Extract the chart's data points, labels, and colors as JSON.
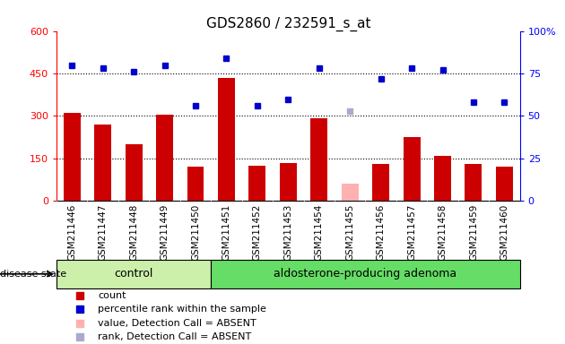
{
  "title": "GDS2860 / 232591_s_at",
  "samples": [
    "GSM211446",
    "GSM211447",
    "GSM211448",
    "GSM211449",
    "GSM211450",
    "GSM211451",
    "GSM211452",
    "GSM211453",
    "GSM211454",
    "GSM211455",
    "GSM211456",
    "GSM211457",
    "GSM211458",
    "GSM211459",
    "GSM211460"
  ],
  "counts": [
    310,
    270,
    200,
    305,
    120,
    435,
    125,
    135,
    292,
    60,
    130,
    225,
    160,
    130,
    120
  ],
  "percentile_ranks": [
    80,
    78,
    76,
    80,
    56,
    84,
    56,
    60,
    78,
    null,
    72,
    78,
    77,
    58,
    58
  ],
  "absent_value": [
    null,
    null,
    null,
    null,
    null,
    null,
    null,
    null,
    null,
    60,
    null,
    null,
    null,
    null,
    null
  ],
  "absent_rank": [
    null,
    null,
    null,
    null,
    null,
    null,
    null,
    null,
    null,
    53,
    null,
    null,
    null,
    null,
    null
  ],
  "control_count": 5,
  "bar_color": "#cc0000",
  "absent_bar_color": "#ffb0b0",
  "dot_color": "#0000cc",
  "absent_dot_color": "#aaaacc",
  "control_bg": "#ccf0aa",
  "adenoma_bg": "#66dd66",
  "sample_label_bg": "#d4d4d4",
  "group_label_control": "control",
  "group_label_adenoma": "aldosterone-producing adenoma",
  "ylim_left": [
    0,
    600
  ],
  "ylim_right": [
    0,
    100
  ],
  "yticks_left": [
    0,
    150,
    300,
    450,
    600
  ],
  "ytick_labels_left": [
    "0",
    "150",
    "300",
    "450",
    "600"
  ],
  "yticks_right": [
    0,
    25,
    50,
    75,
    100
  ],
  "ytick_labels_right": [
    "0",
    "25",
    "50",
    "75",
    "100%"
  ],
  "legend_items": [
    {
      "color": "#cc0000",
      "label": "count",
      "marker": "s"
    },
    {
      "color": "#0000cc",
      "label": "percentile rank within the sample",
      "marker": "s"
    },
    {
      "color": "#ffb0b0",
      "label": "value, Detection Call = ABSENT",
      "marker": "s"
    },
    {
      "color": "#aaaacc",
      "label": "rank, Detection Call = ABSENT",
      "marker": "s"
    }
  ]
}
